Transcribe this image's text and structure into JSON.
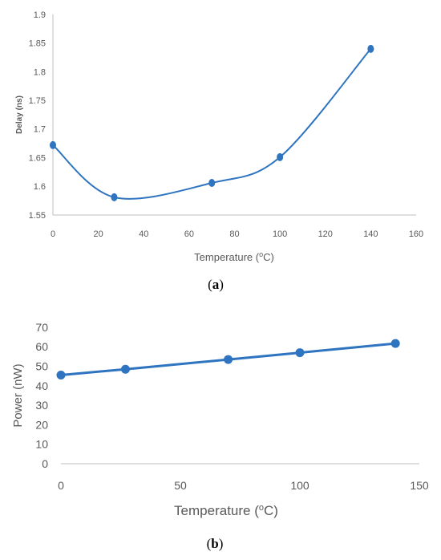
{
  "chart_data": [
    {
      "type": "line",
      "panel": "a",
      "caption": "(a)",
      "xlabel": "Temperature (oC)",
      "ylabel": "Delay (ns)",
      "xlim": [
        0,
        160
      ],
      "ylim": [
        1.55,
        1.9
      ],
      "x_ticks": [
        "0",
        "20",
        "40",
        "60",
        "80",
        "100",
        "120",
        "140",
        "160"
      ],
      "y_ticks": [
        "1.55",
        "1.6",
        "1.65",
        "1.7",
        "1.75",
        "1.8",
        "1.85",
        "1.9"
      ],
      "smooth": true,
      "grid": false,
      "series": [
        {
          "x": [
            0,
            27,
            70,
            100,
            140
          ],
          "y": [
            1.672,
            1.581,
            1.606,
            1.651,
            1.84
          ],
          "color": "#2e74c0"
        }
      ]
    },
    {
      "type": "line",
      "panel": "b",
      "caption": "(b)",
      "xlabel": "Temperature (oC)",
      "ylabel": "Power (nW)",
      "xlim": [
        0,
        150
      ],
      "ylim": [
        0,
        70
      ],
      "x_ticks": [
        "0",
        "50",
        "100",
        "150"
      ],
      "y_ticks": [
        "0",
        "10",
        "20",
        "30",
        "40",
        "50",
        "60",
        "70"
      ],
      "smooth": false,
      "grid": false,
      "series": [
        {
          "x": [
            0,
            27,
            70,
            100,
            140
          ],
          "y": [
            45.5,
            48.5,
            53.5,
            57,
            61.7
          ],
          "color": "#2e74c0"
        }
      ]
    }
  ]
}
